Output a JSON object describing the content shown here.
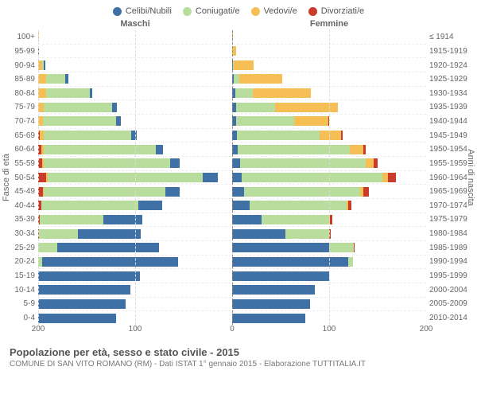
{
  "legend": [
    {
      "label": "Celibi/Nubili",
      "color": "#3f71a6"
    },
    {
      "label": "Coniugati/e",
      "color": "#b8dd9c"
    },
    {
      "label": "Vedovi/e",
      "color": "#f6bf55"
    },
    {
      "label": "Divorziati/e",
      "color": "#cb3b2a"
    }
  ],
  "col_headers": {
    "left": "Maschi",
    "right": "Femmine"
  },
  "y_left_title": "Fasce di età",
  "y_right_title": "Anni di nascita",
  "age_groups": [
    "100+",
    "95-99",
    "90-94",
    "85-89",
    "80-84",
    "75-79",
    "70-74",
    "65-69",
    "60-64",
    "55-59",
    "50-54",
    "45-49",
    "40-44",
    "35-39",
    "30-34",
    "25-29",
    "20-24",
    "15-19",
    "10-14",
    "5-9",
    "0-4"
  ],
  "birth_years": [
    "≤ 1914",
    "1915-1919",
    "1920-1924",
    "1925-1929",
    "1930-1934",
    "1935-1939",
    "1940-1944",
    "1945-1949",
    "1950-1954",
    "1955-1959",
    "1960-1964",
    "1965-1969",
    "1970-1974",
    "1975-1979",
    "1980-1984",
    "1985-1989",
    "1990-1994",
    "1995-1999",
    "2000-2004",
    "2005-2009",
    "2010-2014"
  ],
  "x_ticks": [
    -200,
    -100,
    0,
    100,
    200
  ],
  "x_max": 200,
  "male": [
    {
      "c": 0,
      "m": 0,
      "w": 1,
      "d": 0
    },
    {
      "c": 1,
      "m": 0,
      "w": 0,
      "d": 0
    },
    {
      "c": 1,
      "m": 2,
      "w": 4,
      "d": 0
    },
    {
      "c": 3,
      "m": 20,
      "w": 8,
      "d": 0
    },
    {
      "c": 3,
      "m": 45,
      "w": 8,
      "d": 0
    },
    {
      "c": 5,
      "m": 70,
      "w": 6,
      "d": 0
    },
    {
      "c": 5,
      "m": 75,
      "w": 5,
      "d": 0
    },
    {
      "c": 6,
      "m": 90,
      "w": 4,
      "d": 2
    },
    {
      "c": 8,
      "m": 115,
      "w": 3,
      "d": 3
    },
    {
      "c": 10,
      "m": 130,
      "w": 2,
      "d": 4
    },
    {
      "c": 15,
      "m": 160,
      "w": 2,
      "d": 8
    },
    {
      "c": 15,
      "m": 125,
      "w": 1,
      "d": 5
    },
    {
      "c": 25,
      "m": 100,
      "w": 0,
      "d": 3
    },
    {
      "c": 40,
      "m": 65,
      "w": 0,
      "d": 2
    },
    {
      "c": 65,
      "m": 40,
      "w": 0,
      "d": 1
    },
    {
      "c": 105,
      "m": 20,
      "w": 0,
      "d": 0
    },
    {
      "c": 140,
      "m": 4,
      "w": 0,
      "d": 0
    },
    {
      "c": 105,
      "m": 0,
      "w": 0,
      "d": 0
    },
    {
      "c": 95,
      "m": 0,
      "w": 0,
      "d": 0
    },
    {
      "c": 90,
      "m": 0,
      "w": 0,
      "d": 0
    },
    {
      "c": 80,
      "m": 0,
      "w": 0,
      "d": 0
    }
  ],
  "female": [
    {
      "c": 0,
      "m": 0,
      "w": 1,
      "d": 0
    },
    {
      "c": 0,
      "m": 0,
      "w": 4,
      "d": 0
    },
    {
      "c": 1,
      "m": 1,
      "w": 20,
      "d": 0
    },
    {
      "c": 2,
      "m": 5,
      "w": 45,
      "d": 0
    },
    {
      "c": 3,
      "m": 18,
      "w": 60,
      "d": 0
    },
    {
      "c": 4,
      "m": 40,
      "w": 65,
      "d": 0
    },
    {
      "c": 4,
      "m": 60,
      "w": 35,
      "d": 1
    },
    {
      "c": 5,
      "m": 85,
      "w": 22,
      "d": 2
    },
    {
      "c": 6,
      "m": 115,
      "w": 14,
      "d": 3
    },
    {
      "c": 8,
      "m": 130,
      "w": 8,
      "d": 4
    },
    {
      "c": 10,
      "m": 145,
      "w": 6,
      "d": 8
    },
    {
      "c": 12,
      "m": 120,
      "w": 3,
      "d": 6
    },
    {
      "c": 18,
      "m": 100,
      "w": 2,
      "d": 3
    },
    {
      "c": 30,
      "m": 70,
      "w": 1,
      "d": 2
    },
    {
      "c": 55,
      "m": 45,
      "w": 0,
      "d": 2
    },
    {
      "c": 100,
      "m": 25,
      "w": 0,
      "d": 1
    },
    {
      "c": 120,
      "m": 5,
      "w": 0,
      "d": 0
    },
    {
      "c": 100,
      "m": 0,
      "w": 0,
      "d": 0
    },
    {
      "c": 85,
      "m": 0,
      "w": 0,
      "d": 0
    },
    {
      "c": 80,
      "m": 0,
      "w": 0,
      "d": 0
    },
    {
      "c": 75,
      "m": 0,
      "w": 0,
      "d": 0
    }
  ],
  "footer": {
    "title": "Popolazione per età, sesso e stato civile - 2015",
    "sub": "COMUNE DI SAN VITO ROMANO (RM) - Dati ISTAT 1° gennaio 2015 - Elaborazione TUTTITALIA.IT"
  }
}
